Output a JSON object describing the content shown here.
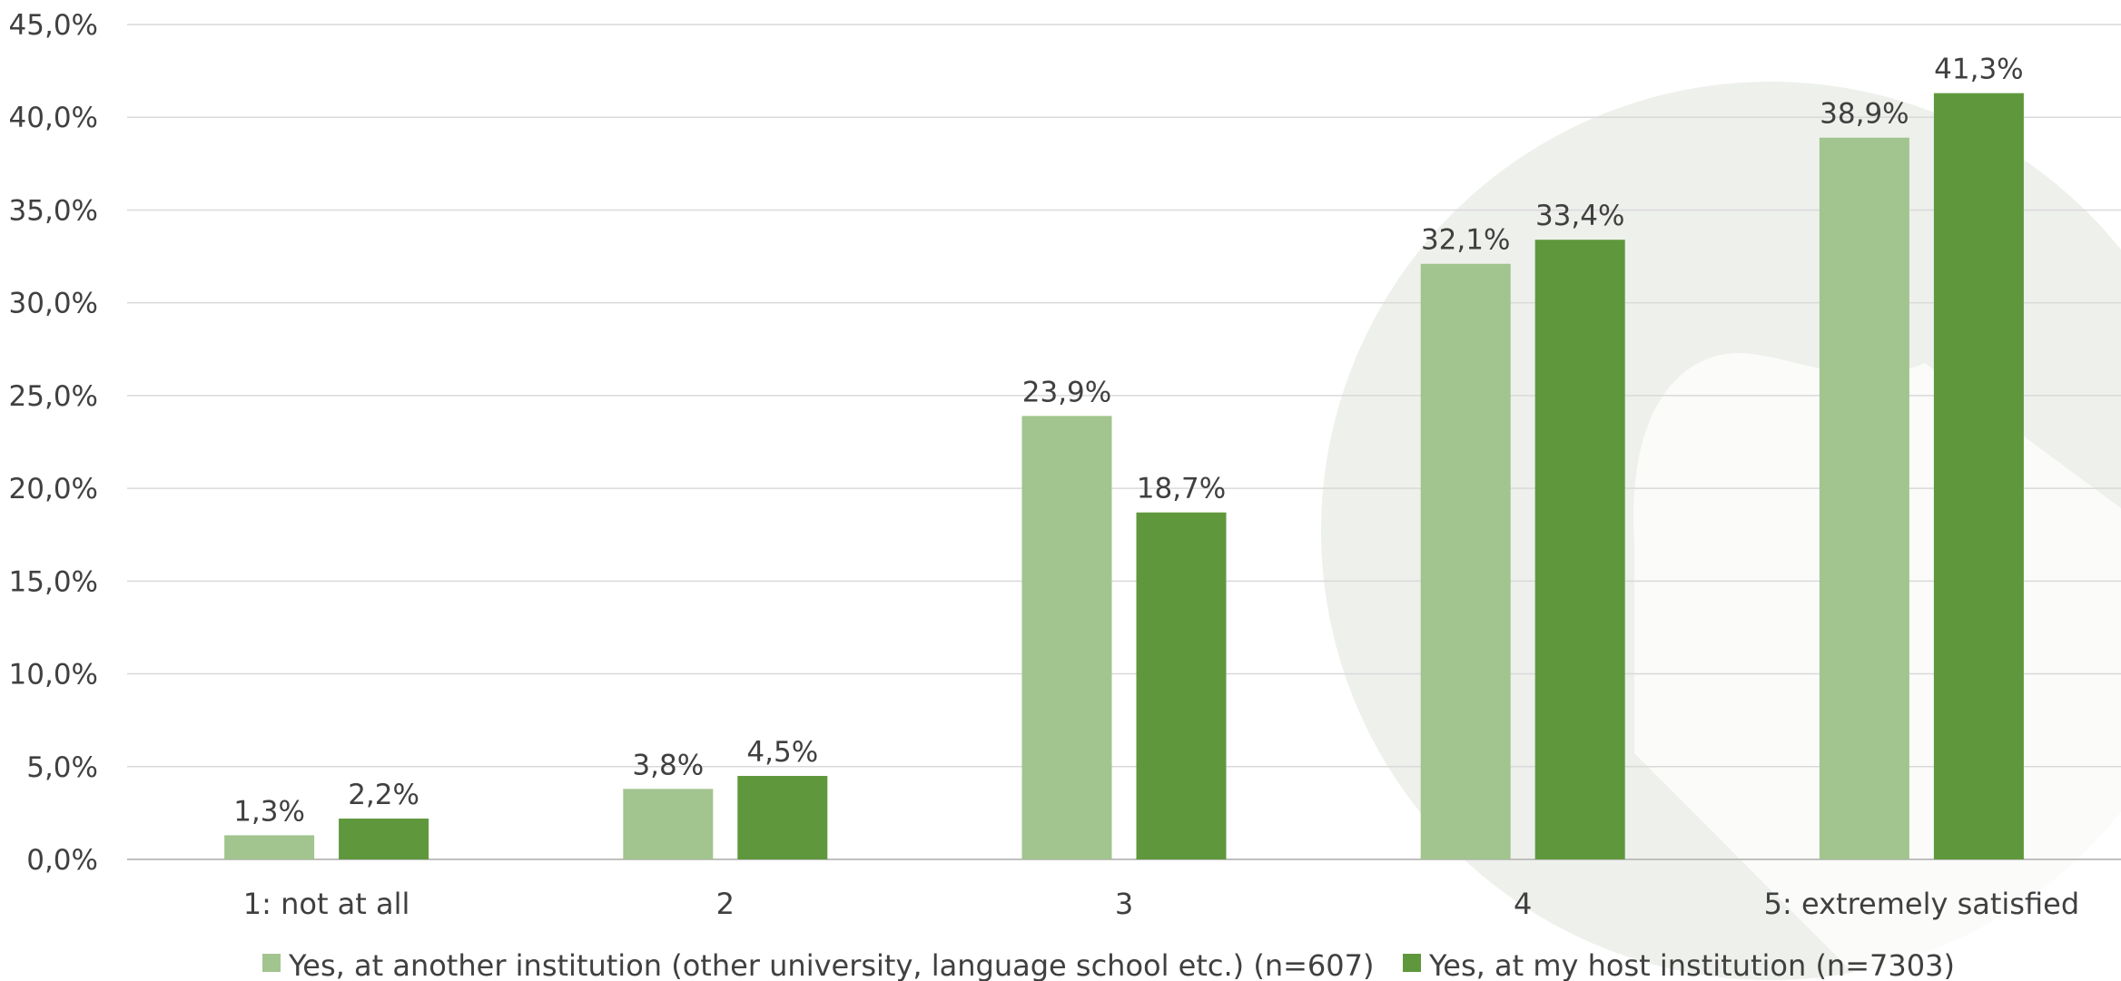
{
  "chart_data": {
    "type": "bar",
    "title": "",
    "xlabel": "",
    "ylabel": "",
    "ylim": [
      0,
      45
    ],
    "y_ticks": [
      "0,0%",
      "5,0%",
      "10,0%",
      "15,0%",
      "20,0%",
      "25,0%",
      "30,0%",
      "35,0%",
      "40,0%",
      "45,0%"
    ],
    "y_tick_values": [
      0,
      5,
      10,
      15,
      20,
      25,
      30,
      35,
      40,
      45
    ],
    "categories": [
      "1: not at all",
      "2",
      "3",
      "4",
      "5: extremely satisfied"
    ],
    "series": [
      {
        "name": "Yes, at another institution (other university, language school etc.) (n=607)",
        "values": [
          1.3,
          3.8,
          23.9,
          32.1,
          38.9
        ],
        "labels": [
          "1,3%",
          "3,8%",
          "23,9%",
          "32,1%",
          "38,9%"
        ],
        "color": "#a2c48f"
      },
      {
        "name": "Yes, at my host institution (n=7303)",
        "values": [
          2.2,
          4.5,
          18.7,
          33.4,
          41.3
        ],
        "labels": [
          "2,2%",
          "4,5%",
          "18,7%",
          "33,4%",
          "41,3%"
        ],
        "color": "#5f983c"
      }
    ],
    "grid": true,
    "legend_position": "bottom",
    "colors": {
      "gridline": "#d9d9d9",
      "axis": "#bfbfbf",
      "text": "#404040",
      "watermark": "#eef0ec"
    }
  }
}
